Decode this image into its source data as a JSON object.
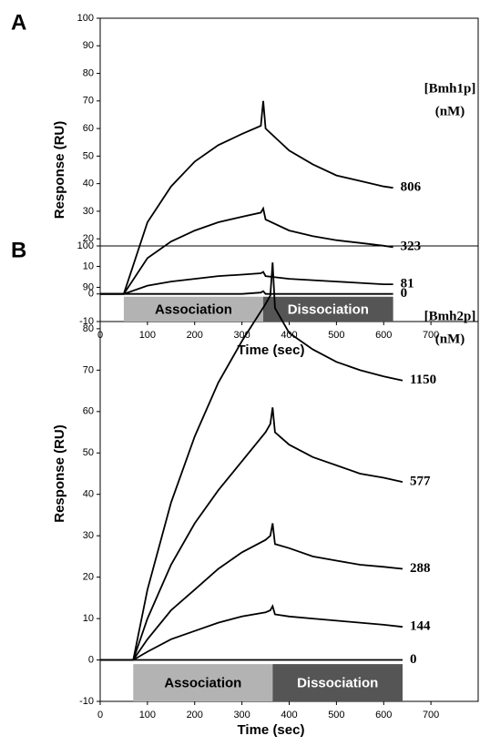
{
  "chart_data": [
    {
      "type": "line",
      "panel": "A",
      "title_y": "Response (RU)",
      "title_x": "Time (sec)",
      "legend_title": [
        "[Bmh1p]",
        "(nM)"
      ],
      "xlim": [
        0,
        800
      ],
      "ylim": [
        -10,
        100
      ],
      "xticks": [
        0,
        100,
        200,
        300,
        400,
        500,
        600,
        700
      ],
      "yticks": [
        -10,
        0,
        10,
        20,
        30,
        40,
        50,
        60,
        70,
        80,
        90,
        100
      ],
      "phases": [
        {
          "label": "Association",
          "start": 50,
          "end": 345,
          "color": "#b3b3b3",
          "text_color": "#000000"
        },
        {
          "label": "Dissociation",
          "start": 345,
          "end": 620,
          "color": "#555555",
          "text_color": "#ffffff"
        }
      ],
      "x": [
        0,
        50,
        100,
        150,
        200,
        250,
        300,
        340,
        345,
        350,
        400,
        450,
        500,
        550,
        600,
        620
      ],
      "series": [
        {
          "name": "806",
          "color": "#000000",
          "values": [
            0,
            0,
            26,
            39,
            48,
            54,
            58,
            61,
            70,
            60,
            52,
            47,
            43,
            41,
            39,
            38.5
          ]
        },
        {
          "name": "323",
          "color": "#000000",
          "values": [
            0,
            0,
            13,
            19,
            23,
            26,
            28,
            29.5,
            31,
            27,
            23,
            21,
            19.5,
            18.5,
            17.5,
            17
          ]
        },
        {
          "name": "81",
          "color": "#000000",
          "values": [
            0,
            0,
            3,
            4.5,
            5.5,
            6.5,
            7,
            7.5,
            8,
            6.5,
            5.5,
            5,
            4.5,
            4,
            3.5,
            3.5
          ]
        },
        {
          "name": "0",
          "color": "#000000",
          "values": [
            0,
            0,
            0,
            0,
            0,
            0,
            0,
            0.5,
            1,
            0,
            0,
            0,
            0,
            0,
            0,
            0
          ]
        }
      ]
    },
    {
      "type": "line",
      "panel": "B",
      "title_y": "Response (RU)",
      "title_x": "Time (sec)",
      "legend_title": [
        "[Bmh2p]",
        "(nM)"
      ],
      "xlim": [
        0,
        800
      ],
      "ylim": [
        -10,
        100
      ],
      "xticks": [
        0,
        100,
        200,
        300,
        400,
        500,
        600,
        700
      ],
      "yticks": [
        -10,
        0,
        10,
        20,
        30,
        40,
        50,
        60,
        70,
        80,
        90,
        100
      ],
      "phases": [
        {
          "label": "Association",
          "start": 70,
          "end": 365,
          "color": "#b3b3b3",
          "text_color": "#000000"
        },
        {
          "label": "Dissociation",
          "start": 365,
          "end": 640,
          "color": "#555555",
          "text_color": "#ffffff"
        }
      ],
      "x": [
        0,
        70,
        100,
        150,
        200,
        250,
        300,
        350,
        360,
        365,
        370,
        400,
        450,
        500,
        550,
        600,
        640
      ],
      "series": [
        {
          "name": "1150",
          "color": "#000000",
          "values": [
            0,
            0,
            17,
            38,
            54,
            67,
            77,
            86,
            88,
            96,
            85,
            79,
            75,
            72,
            70,
            68.5,
            67.5
          ]
        },
        {
          "name": "577",
          "color": "#000000",
          "values": [
            0,
            0,
            10,
            23,
            33,
            41,
            48,
            55,
            57,
            61,
            55,
            52,
            49,
            47,
            45,
            44,
            43
          ]
        },
        {
          "name": "288",
          "color": "#000000",
          "values": [
            0,
            0,
            5,
            12,
            17,
            22,
            26,
            29,
            30,
            33,
            28,
            27,
            25,
            24,
            23,
            22.5,
            22
          ]
        },
        {
          "name": "144",
          "color": "#000000",
          "values": [
            0,
            0,
            2,
            5,
            7,
            9,
            10.5,
            11.5,
            12,
            13,
            11,
            10.5,
            10,
            9.5,
            9,
            8.5,
            8
          ]
        },
        {
          "name": "0",
          "color": "#000000",
          "values": [
            0,
            0,
            0,
            0,
            0,
            0,
            0,
            0,
            0,
            0,
            0,
            0,
            0,
            0,
            0,
            0,
            0
          ]
        }
      ]
    }
  ]
}
